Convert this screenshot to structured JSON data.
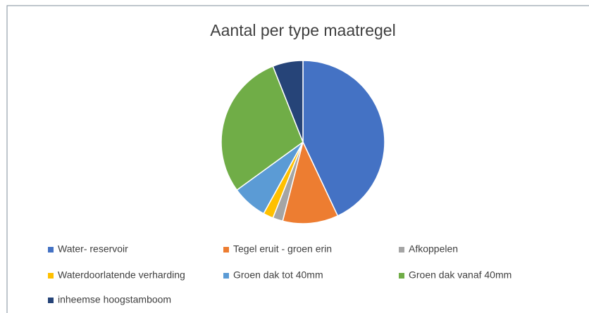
{
  "chart_data": {
    "type": "pie",
    "title": "Aantal per type maatregel",
    "categories": [
      "Water- reservoir",
      "Tegel eruit - groen erin",
      "Afkoppelen",
      "Waterdoorlatende verharding",
      "Groen dak tot 40mm",
      "Groen dak vanaf 40mm",
      "inheemse hoogstamboom"
    ],
    "values": [
      43,
      11,
      2,
      2,
      7,
      29,
      6
    ],
    "colors": [
      "#4472c4",
      "#ed7d31",
      "#a5a5a5",
      "#ffc000",
      "#5b9bd5",
      "#70ad47",
      "#264478"
    ],
    "legend": "bottom"
  }
}
